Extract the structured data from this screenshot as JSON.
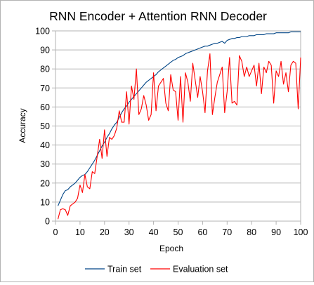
{
  "chart_data": {
    "type": "line",
    "title": "RNN Encoder + Attention RNN Decoder",
    "xlabel": "Epoch",
    "ylabel": "Accuracy",
    "xlim": [
      0,
      100
    ],
    "ylim": [
      0,
      100
    ],
    "xticks": [
      0,
      10,
      20,
      30,
      40,
      50,
      60,
      70,
      80,
      90,
      100
    ],
    "yticks": [
      0,
      10,
      20,
      30,
      40,
      50,
      60,
      70,
      80,
      90,
      100
    ],
    "grid": "horizontal",
    "legend_position": "bottom",
    "series": [
      {
        "name": "Train set",
        "color": "#004586",
        "x": [
          1,
          2,
          3,
          4,
          5,
          6,
          7,
          8,
          9,
          10,
          11,
          12,
          13,
          14,
          15,
          16,
          17,
          18,
          19,
          20,
          21,
          22,
          23,
          24,
          25,
          26,
          27,
          28,
          29,
          30,
          31,
          32,
          33,
          34,
          35,
          36,
          37,
          38,
          39,
          40,
          41,
          42,
          43,
          44,
          45,
          46,
          47,
          48,
          49,
          50,
          51,
          52,
          53,
          54,
          55,
          56,
          57,
          58,
          59,
          60,
          61,
          62,
          63,
          64,
          65,
          66,
          67,
          68,
          69,
          70,
          71,
          72,
          73,
          74,
          75,
          76,
          77,
          78,
          79,
          80,
          81,
          82,
          83,
          84,
          85,
          86,
          87,
          88,
          89,
          90,
          91,
          92,
          93,
          94,
          95,
          96,
          97,
          98,
          99,
          100
        ],
        "values": [
          8,
          11,
          14,
          16,
          16.5,
          18,
          19,
          20,
          21.5,
          23,
          24,
          24.5,
          26,
          28,
          30,
          32,
          34.5,
          37,
          39.5,
          41.5,
          44,
          46,
          48.5,
          50.5,
          52,
          54.5,
          57,
          59,
          60.5,
          62.5,
          64,
          65.5,
          67,
          68.5,
          70,
          71.5,
          73,
          74,
          75,
          76,
          77,
          78.5,
          79.5,
          80.5,
          81.5,
          82.5,
          83.5,
          84.5,
          85,
          86,
          86.5,
          87,
          88,
          88.5,
          89,
          89.5,
          90,
          90.5,
          91,
          91.5,
          92,
          92,
          92.5,
          93,
          93.5,
          93.5,
          94,
          94.5,
          93.5,
          95,
          95.5,
          96,
          96,
          96.5,
          96.5,
          97,
          97,
          97,
          97.5,
          97.5,
          97.5,
          98,
          98,
          98,
          98,
          98.5,
          98.5,
          98.5,
          98.5,
          99,
          99,
          99,
          99,
          99,
          99,
          99.5,
          99.5,
          99.5,
          99.5,
          99.5
        ]
      },
      {
        "name": "Evaluation set",
        "color": "#ff0000",
        "x": [
          1,
          2,
          3,
          4,
          5,
          6,
          7,
          8,
          9,
          10,
          11,
          12,
          13,
          14,
          15,
          16,
          17,
          18,
          19,
          20,
          21,
          22,
          23,
          24,
          25,
          26,
          27,
          28,
          29,
          30,
          31,
          32,
          33,
          34,
          35,
          36,
          37,
          38,
          39,
          40,
          41,
          42,
          43,
          44,
          45,
          46,
          47,
          48,
          49,
          50,
          51,
          52,
          53,
          54,
          55,
          56,
          57,
          58,
          59,
          60,
          61,
          62,
          63,
          64,
          65,
          66,
          67,
          68,
          69,
          70,
          71,
          72,
          73,
          74,
          75,
          76,
          77,
          78,
          79,
          80,
          81,
          82,
          83,
          84,
          85,
          86,
          87,
          88,
          89,
          90,
          91,
          92,
          93,
          94,
          95,
          96,
          97,
          98,
          99,
          100
        ],
        "values": [
          1,
          6,
          6.5,
          6,
          3,
          8,
          9,
          10,
          12,
          19,
          15,
          24.5,
          18,
          17,
          26,
          25,
          34,
          43,
          33,
          48,
          34,
          44,
          43,
          45,
          49,
          58,
          52,
          52,
          68,
          51,
          71,
          64,
          80,
          56,
          59,
          66,
          61,
          53,
          56,
          78,
          58,
          71,
          73,
          75,
          62,
          58,
          77,
          69,
          68,
          53,
          76,
          52,
          78,
          73,
          63,
          83,
          74,
          65,
          76,
          68,
          57,
          79,
          88,
          56,
          65,
          73,
          77,
          81,
          57,
          68,
          86,
          62,
          63,
          61,
          87,
          84,
          76,
          81,
          76,
          79,
          82,
          71,
          83,
          67,
          81,
          78,
          84,
          82,
          62,
          79,
          76,
          84,
          72,
          78,
          68,
          82,
          84,
          83,
          59,
          86
        ]
      }
    ]
  }
}
